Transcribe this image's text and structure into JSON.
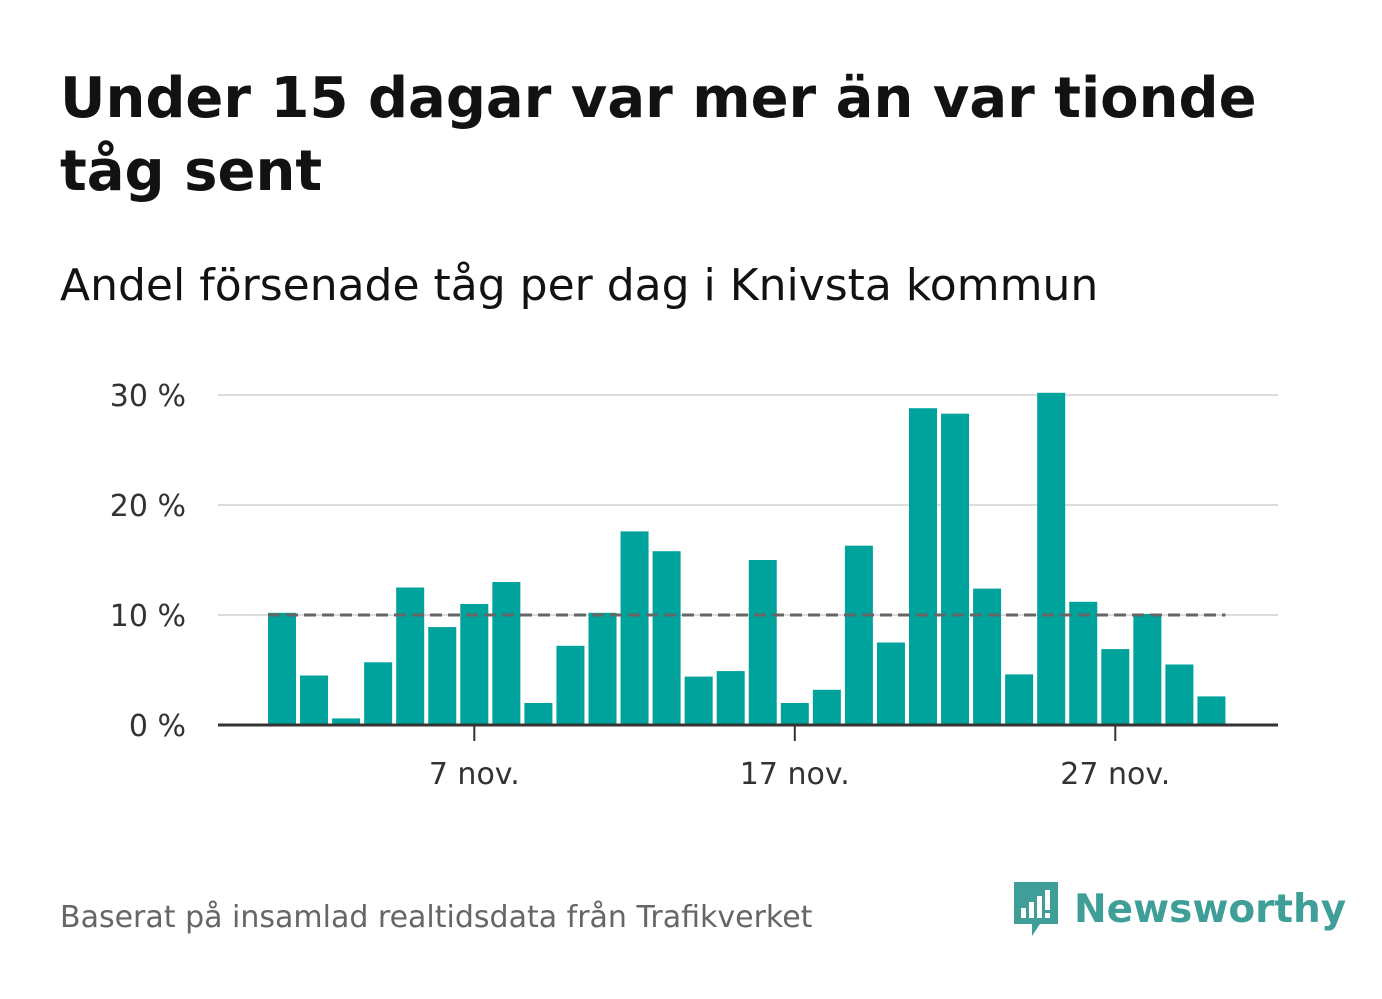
{
  "header": {
    "title": "Under 15 dagar var mer än var tionde tåg sent",
    "subtitle": "Andel försenade tåg per dag i Knivsta kommun"
  },
  "footer": {
    "source": "Baserat på insamlad realtidsdata från Trafikverket",
    "brand": "Newsworthy"
  },
  "colors": {
    "bar": "#00a39b",
    "reference_line": "#666666",
    "grid": "#dddddd",
    "axis": "#333333",
    "brand": "#3f9e97"
  },
  "chart_data": {
    "type": "bar",
    "x": [
      "2024-11-01",
      "2024-11-02",
      "2024-11-03",
      "2024-11-04",
      "2024-11-05",
      "2024-11-06",
      "2024-11-07",
      "2024-11-08",
      "2024-11-09",
      "2024-11-10",
      "2024-11-11",
      "2024-11-12",
      "2024-11-13",
      "2024-11-14",
      "2024-11-15",
      "2024-11-16",
      "2024-11-17",
      "2024-11-18",
      "2024-11-19",
      "2024-11-20",
      "2024-11-21",
      "2024-11-22",
      "2024-11-23",
      "2024-11-24",
      "2024-11-25",
      "2024-11-26",
      "2024-11-27",
      "2024-11-28",
      "2024-11-29",
      "2024-11-30"
    ],
    "values": [
      10.2,
      4.5,
      0.6,
      5.7,
      12.5,
      8.9,
      11.0,
      13.0,
      2.0,
      7.2,
      10.2,
      17.6,
      15.8,
      4.4,
      4.9,
      15.0,
      2.0,
      3.2,
      16.3,
      7.5,
      28.8,
      28.3,
      12.4,
      4.6,
      30.2,
      11.2,
      6.9,
      10.1,
      5.5,
      2.6
    ],
    "reference_line": 10,
    "ylim": [
      0,
      30
    ],
    "yticks": [
      0,
      10,
      20,
      30
    ],
    "ytick_labels": [
      "0 %",
      "10 %",
      "20 %",
      "30 %"
    ],
    "xticks": [
      "2024-11-07",
      "2024-11-17",
      "2024-11-27"
    ],
    "xtick_labels": [
      "7 nov.",
      "17 nov.",
      "27 nov."
    ],
    "grid": true,
    "legend": false
  }
}
